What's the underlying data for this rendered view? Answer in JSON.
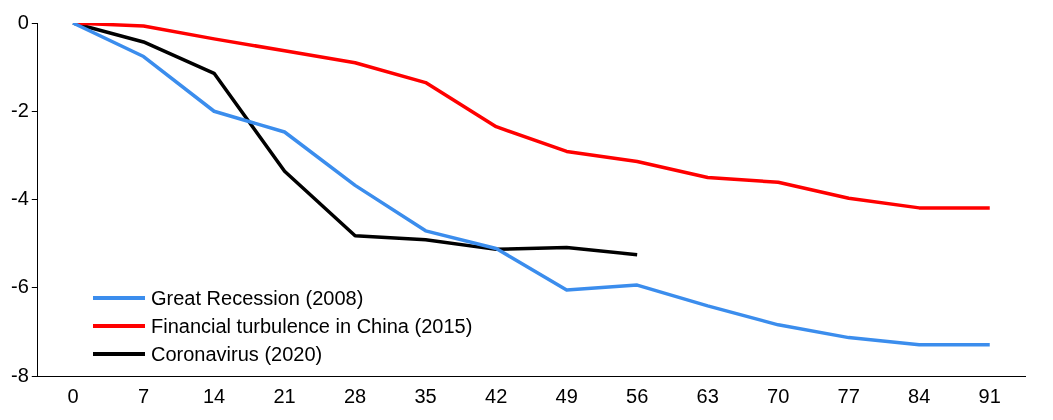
{
  "chart_data": {
    "type": "line",
    "categories": [
      "0",
      "7",
      "14",
      "21",
      "28",
      "35",
      "42",
      "49",
      "56",
      "63",
      "70",
      "77",
      "84",
      "91"
    ],
    "ylim": [
      -8,
      0
    ],
    "yticks": [
      -8,
      -6,
      -4,
      -2,
      0
    ],
    "grid": false,
    "legend": "bottom left",
    "marker": "none",
    "line_style": "solid",
    "series": [
      {
        "name": "Great Recession (2008)",
        "color": "#3b8ded",
        "values": [
          0,
          -0.76,
          -2.0,
          -2.47,
          -3.68,
          -4.71,
          -5.11,
          -6.05,
          -5.94,
          -6.41,
          -6.84,
          -7.13,
          -7.29,
          -7.29
        ]
      },
      {
        "name": "Financial turbulence in China (2015)",
        "color": "#ff0000",
        "values": [
          0,
          -0.07,
          -0.36,
          -0.63,
          -0.9,
          -1.35,
          -2.35,
          -2.91,
          -3.14,
          -3.5,
          -3.61,
          -3.97,
          -4.19,
          -4.19
        ]
      },
      {
        "name": "Coronavirus (2020)",
        "color": "#000000",
        "values": [
          0,
          -0.43,
          -1.14,
          -3.36,
          -4.82,
          -4.91,
          -5.13,
          -5.09,
          -5.25,
          null,
          null,
          null,
          null,
          null
        ]
      }
    ]
  }
}
